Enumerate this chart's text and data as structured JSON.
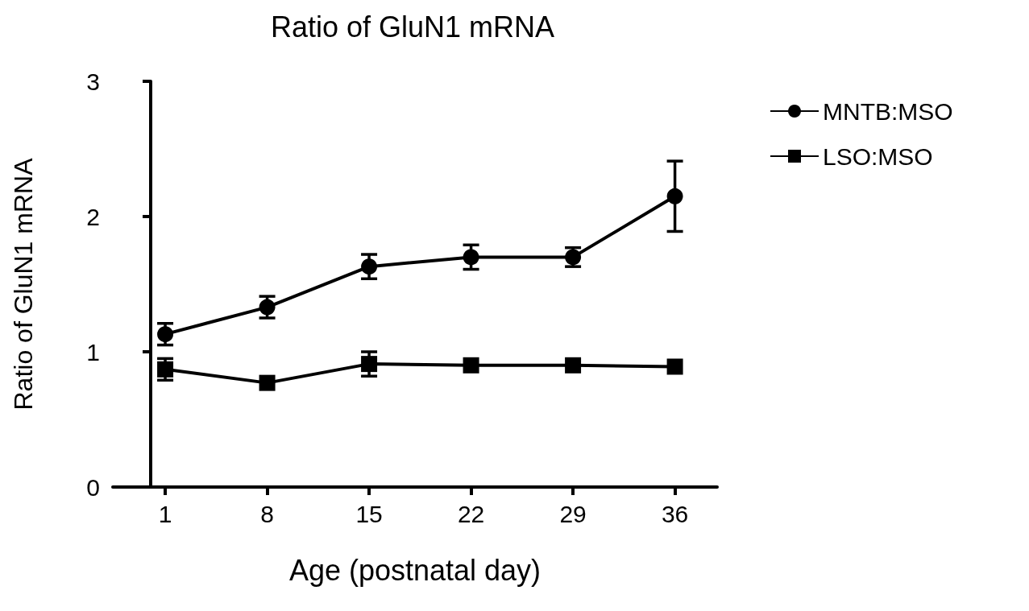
{
  "chart_data": {
    "type": "line",
    "title": "Ratio of GluN1 mRNA",
    "xlabel": "Age (postnatal day)",
    "ylabel": "Ratio of GluN1 mRNA",
    "x": [
      1,
      8,
      15,
      22,
      29,
      36
    ],
    "series": [
      {
        "name": "MNTB:MSO",
        "color": "#000000",
        "marker": "circle",
        "values": [
          1.13,
          1.33,
          1.63,
          1.7,
          1.7,
          2.15
        ],
        "errors": [
          0.08,
          0.08,
          0.09,
          0.09,
          0.07,
          0.26
        ]
      },
      {
        "name": "LSO:MSO",
        "color": "#000000",
        "marker": "square",
        "values": [
          0.87,
          0.77,
          0.91,
          0.9,
          0.9,
          0.89
        ],
        "errors": [
          0.08,
          null,
          0.09,
          null,
          null,
          null
        ]
      }
    ],
    "xlim": [
      -2.6,
      38.9
    ],
    "xticks": [
      1,
      8,
      15,
      22,
      29,
      36
    ],
    "ylim": [
      0,
      3
    ],
    "yticks": [
      0,
      1,
      2,
      3
    ],
    "grid": false,
    "legend": "top right",
    "line_style": "solid"
  }
}
